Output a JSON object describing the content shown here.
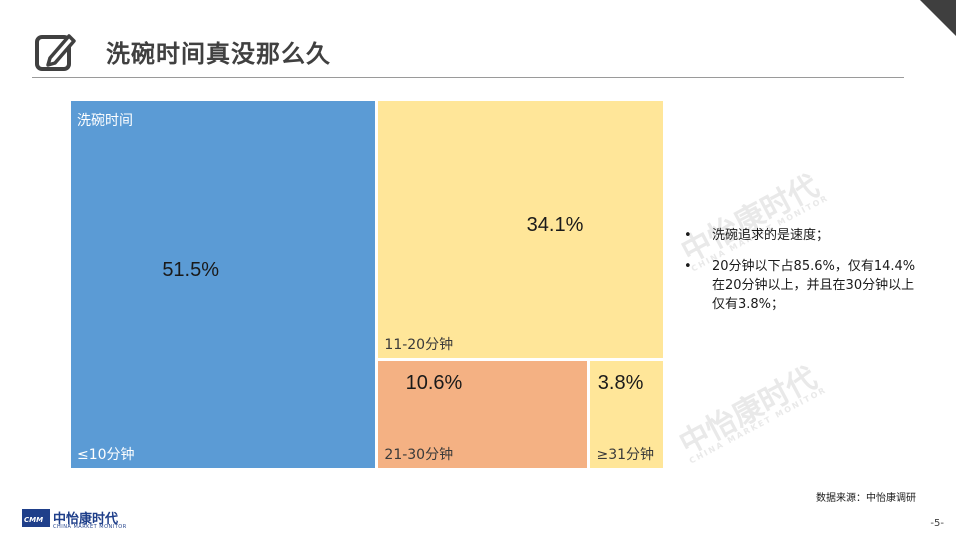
{
  "header": {
    "title": "洗碗时间真没那么久",
    "icon": "edit-icon"
  },
  "chart_data": {
    "type": "treemap",
    "title": "洗碗时间",
    "items": [
      {
        "label": "≤10分钟",
        "value": 51.5,
        "value_label": "51.5%",
        "color": "#5b9bd5"
      },
      {
        "label": "11-20分钟",
        "value": 34.1,
        "value_label": "34.1%",
        "color": "#ffe699"
      },
      {
        "label": "21-30分钟",
        "value": 10.6,
        "value_label": "10.6%",
        "color": "#f4b183"
      },
      {
        "label": "≥31分钟",
        "value": 3.8,
        "value_label": "3.8%",
        "color": "#ffe699"
      }
    ]
  },
  "notes": [
    "洗碗追求的是速度；",
    "20分钟以下占85.6%，仅有14.4%在20分钟以上，并且在30分钟以上仅有3.8%；"
  ],
  "bullet_symbol": "•",
  "source": "数据来源：中怡康调研",
  "page_number": "-5-",
  "logo": {
    "mark": "CMM",
    "name": "中怡康时代",
    "tagline": "CHINA MARKET MONITOR"
  },
  "watermark": {
    "name": "中怡康时代",
    "tagline": "CHINA MARKET MONITOR"
  }
}
